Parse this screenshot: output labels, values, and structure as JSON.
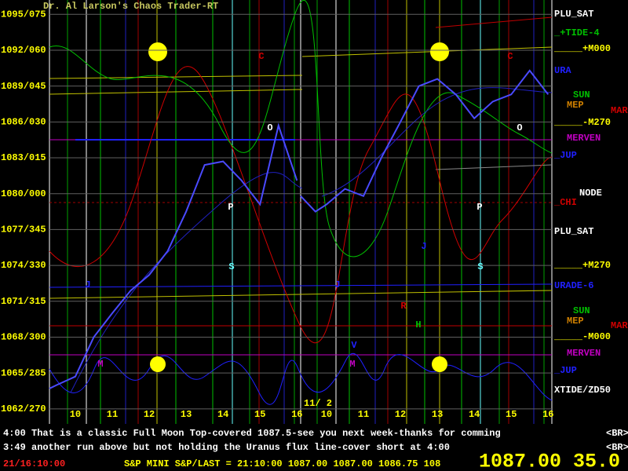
{
  "header": "Dr. Al Larson's Chaos Trader-RT",
  "chart_data": [
    {
      "type": "line",
      "x": [
        9.3,
        9.5,
        10,
        10.5,
        11,
        11.5,
        12,
        12.5,
        13,
        13.5,
        14,
        14.5,
        15,
        15.5,
        16
      ],
      "series": [
        {
          "name": "S&P MINI",
          "color": "#4a4aff",
          "values": [
            1063.7,
            1064,
            1064.7,
            1068,
            1070,
            1071.9,
            1073.2,
            1075.2,
            1078.5,
            1082.4,
            1082.7,
            1081.1,
            1079.1,
            1085.7,
            1081.1
          ]
        }
      ],
      "xlim": [
        9.3,
        16.1
      ],
      "xticks": [
        10,
        11,
        12,
        13,
        14,
        15,
        16
      ],
      "ylim": [
        1061.2,
        1096.2
      ],
      "yticks": [
        {
          "value": 1095,
          "label": "1095/075"
        },
        {
          "value": 1092,
          "label": "1092/060"
        },
        {
          "value": 1089,
          "label": "1089/045"
        },
        {
          "value": 1086,
          "label": "1086/030"
        },
        {
          "value": 1083,
          "label": "1083/015"
        },
        {
          "value": 1080,
          "label": "1080/000"
        },
        {
          "value": 1077,
          "label": "1077/345"
        },
        {
          "value": 1074,
          "label": "1074/330"
        },
        {
          "value": 1071,
          "label": "1071/315"
        },
        {
          "value": 1068,
          "label": "1068/300"
        },
        {
          "value": 1065,
          "label": "1065/285"
        },
        {
          "value": 1062,
          "label": "1062/270"
        }
      ],
      "grid": true
    },
    {
      "type": "line",
      "date_label": "11/ 2",
      "x": [
        9.3,
        9.7,
        10,
        10.5,
        11,
        11.5,
        12,
        12.5,
        13,
        13.5,
        14,
        14.5,
        15,
        15.5,
        16
      ],
      "series": [
        {
          "name": "S&P MINI",
          "color": "#4a4aff",
          "values": [
            1079.8,
            1078.5,
            1079.1,
            1080.4,
            1079.8,
            1083.1,
            1086,
            1089,
            1089.6,
            1088.3,
            1086.3,
            1087.7,
            1088.3,
            1090.3,
            1088.3
          ]
        }
      ],
      "xlim": [
        9.3,
        16.1
      ],
      "xticks": [
        10,
        11,
        12,
        13,
        14,
        15,
        16
      ],
      "ylim": [
        1061.2,
        1096.2
      ]
    }
  ],
  "right_labels": [
    "PLU_SAT",
    "_+TIDE-4",
    "_____+M000",
    "URA",
    "SUN",
    "MEP",
    "MAR",
    "_____-M270",
    "MERVEN",
    "_JUP",
    "NODE",
    "_CHI",
    "PLU_SAT",
    "_____+M270",
    "URADE-6",
    "SUN",
    "MEP",
    "MAR",
    "_____-M000",
    "MERVEN",
    "_JUP",
    "XTIDE/ZD50"
  ],
  "glyphs": [
    "C",
    "C",
    "O",
    "O",
    "P",
    "P",
    "S",
    "S",
    "J",
    "J",
    "J",
    "R",
    "M",
    "M",
    "V",
    "H"
  ],
  "messages": [
    {
      "text": "4:00 That is a classic Full Moon Top-covered 1087.5-see you next week-thanks for comming",
      "tag": "<BR>"
    },
    {
      "text": "3:49 another run above but not holding the Uranus flux line-cover short at 4:00",
      "tag": "<BR>"
    }
  ],
  "status": {
    "time": "21/16:10:00",
    "quote": "S&P MINI S&P/LAST = 21:10:00 1087.00 1087.00 1086.75 108",
    "big": "1087.00 35.0"
  }
}
